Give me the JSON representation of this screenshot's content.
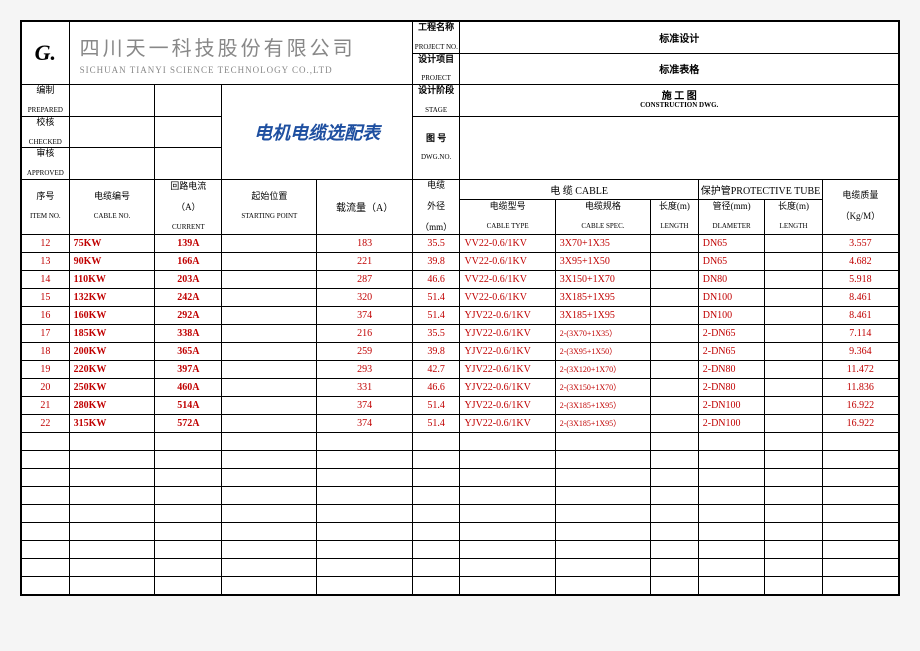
{
  "company": {
    "name_cn": "四川天一科技股份有限公司",
    "name_en": "SICHUAN TIANYI SCIENCE TECHNOLOGY CO.,LTD"
  },
  "proj": {
    "name_lbl_cn": "工程名称",
    "name_lbl_en": "PROJECT NO.",
    "name_val": "标准设计",
    "item_lbl_cn": "设计项目",
    "item_lbl_en": "PROJECT",
    "item_val": "标准表格",
    "stage_lbl_cn": "设计阶段",
    "stage_lbl_en": "STAGE",
    "stage_val_cn": "施 工 图",
    "stage_val_en": "CONSTRUCTION DWG.",
    "dwg_lbl_cn": "图 号",
    "dwg_lbl_en": "DWG.NO.",
    "dwg_val": ""
  },
  "approval": {
    "prep_cn": "编制",
    "prep_en": "PREPARED",
    "chk_cn": "校核",
    "chk_en": "CHECKED",
    "app_cn": "审核",
    "app_en": "APPROVED"
  },
  "title": "电机电缆选配表",
  "cols": {
    "no_cn": "序号",
    "no_en": "ITEM NO.",
    "cable_no_cn": "电缆编号",
    "cable_no_en": "CABLE NO.",
    "loop_cn": "回路电流",
    "loop_unit": "（A）",
    "loop_en": "CURRENT",
    "start_cn": "起始位置",
    "start_en": "STARTING POINT",
    "capacity": "载流量（A）",
    "dia_cn": "电缆",
    "dia_cn2": "外径",
    "dia_unit": "（mm）",
    "cable_group": "电  缆  CABLE",
    "cable_type_cn": "电缆型号",
    "cable_type_en": "CABLE TYPE",
    "cable_spec_cn": "电缆规格",
    "cable_spec_en": "CABLE SPEC.",
    "len_cn": "长度(m)",
    "len_en": "LENGTH",
    "tube_group": "保护管PROTECTIVE TUBE",
    "tube_dia_cn": "管径(mm)",
    "tube_dia_en": "DLAMETER",
    "tube_len_cn": "长度(m)",
    "tube_len_en": "LENGTH",
    "mass_cn": "电缆质量",
    "mass_unit": "（Kg/M）"
  },
  "rows": [
    {
      "no": "12",
      "kw": "75KW",
      "cur": "139A",
      "cap": "183",
      "dia": "35.5",
      "type": "VV22-0.6/1KV",
      "spec": "3X70+1X35",
      "tube": "DN65",
      "mass": "3.557"
    },
    {
      "no": "13",
      "kw": "90KW",
      "cur": "166A",
      "cap": "221",
      "dia": "39.8",
      "type": "VV22-0.6/1KV",
      "spec": "3X95+1X50",
      "tube": "DN65",
      "mass": "4.682"
    },
    {
      "no": "14",
      "kw": "110KW",
      "cur": "203A",
      "cap": "287",
      "dia": "46.6",
      "type": "VV22-0.6/1KV",
      "spec": "3X150+1X70",
      "tube": "DN80",
      "mass": "5.918"
    },
    {
      "no": "15",
      "kw": "132KW",
      "cur": "242A",
      "cap": "320",
      "dia": "51.4",
      "type": "VV22-0.6/1KV",
      "spec": "3X185+1X95",
      "tube": "DN100",
      "mass": "8.461"
    },
    {
      "no": "16",
      "kw": "160KW",
      "cur": "292A",
      "cap": "374",
      "dia": "51.4",
      "type": "YJV22-0.6/1KV",
      "spec": "3X185+1X95",
      "tube": "DN100",
      "mass": "8.461"
    },
    {
      "no": "17",
      "kw": "185KW",
      "cur": "338A",
      "cap": "216",
      "dia": "35.5",
      "type": "YJV22-0.6/1KV",
      "spec": "2-(3X70+1X35）",
      "tube": "2-DN65",
      "mass": "7.114",
      "small": true
    },
    {
      "no": "18",
      "kw": "200KW",
      "cur": "365A",
      "cap": "259",
      "dia": "39.8",
      "type": "YJV22-0.6/1KV",
      "spec": "2-(3X95+1X50）",
      "tube": "2-DN65",
      "mass": "9.364",
      "small": true
    },
    {
      "no": "19",
      "kw": "220KW",
      "cur": "397A",
      "cap": "293",
      "dia": "42.7",
      "type": "YJV22-0.6/1KV",
      "spec": "2-(3X120+1X70）",
      "tube": "2-DN80",
      "mass": "11.472",
      "small": true
    },
    {
      "no": "20",
      "kw": "250KW",
      "cur": "460A",
      "cap": "331",
      "dia": "46.6",
      "type": "YJV22-0.6/1KV",
      "spec": "2-(3X150+1X70）",
      "tube": "2-DN80",
      "mass": "11.836",
      "small": true
    },
    {
      "no": "21",
      "kw": "280KW",
      "cur": "514A",
      "cap": "374",
      "dia": "51.4",
      "type": "YJV22-0.6/1KV",
      "spec": "2-(3X185+1X95）",
      "tube": "2-DN100",
      "mass": "16.922",
      "small": true
    },
    {
      "no": "22",
      "kw": "315KW",
      "cur": "572A",
      "cap": "374",
      "dia": "51.4",
      "type": "YJV22-0.6/1KV",
      "spec": "2-(3X185+1X95）",
      "tube": "2-DN100",
      "mass": "16.922",
      "small": true
    }
  ],
  "empty_rows": 9,
  "widths_pct": [
    5,
    9,
    7,
    10,
    10,
    5,
    10,
    10,
    5,
    7,
    6,
    8
  ]
}
